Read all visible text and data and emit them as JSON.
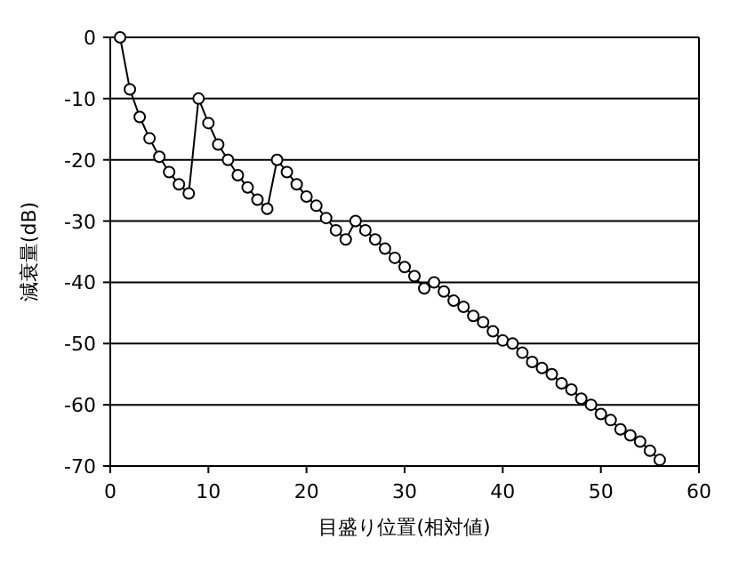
{
  "chart_data": {
    "type": "line",
    "xlabel": "目盛り位置(相対値)",
    "ylabel": "減衰量(dB)",
    "x": [
      1,
      2,
      3,
      4,
      5,
      6,
      7,
      8,
      9,
      10,
      11,
      12,
      13,
      14,
      15,
      16,
      17,
      18,
      19,
      20,
      21,
      22,
      23,
      24,
      25,
      26,
      27,
      28,
      29,
      30,
      31,
      32,
      33,
      34,
      35,
      36,
      37,
      38,
      39,
      40,
      41,
      42,
      43,
      44,
      45,
      46,
      47,
      48,
      49,
      50,
      51,
      52,
      53,
      54,
      55,
      56
    ],
    "series": [
      {
        "color": "#000000",
        "values": [
          0,
          -8.5,
          -13,
          -16.5,
          -19.5,
          -22,
          -24,
          -25.5,
          -10,
          -14,
          -17.5,
          -20,
          -22.5,
          -24.5,
          -26.5,
          -28,
          -20,
          -22,
          -24,
          -26,
          -27.5,
          -29.5,
          -31.5,
          -33,
          -30,
          -31.5,
          -33,
          -34.5,
          -36,
          -37.5,
          -39,
          -41,
          -40,
          -41.5,
          -43,
          -44,
          -45.5,
          -46.5,
          -48,
          -49.5,
          -50,
          -51.5,
          -53,
          -54,
          -55,
          -56.5,
          -57.5,
          -59,
          -60,
          -61.5,
          -62.5,
          -64,
          -65,
          -66,
          -67.5,
          -69
        ]
      }
    ],
    "xlim": [
      0,
      60
    ],
    "xticks": [
      0,
      10,
      20,
      30,
      40,
      50,
      60
    ],
    "ylim": [
      -70,
      0
    ],
    "yticks": [
      0,
      -10,
      -20,
      -30,
      -40,
      -50,
      -60,
      -70
    ],
    "grid": "y",
    "marker": "circle",
    "line_style": "solid"
  }
}
